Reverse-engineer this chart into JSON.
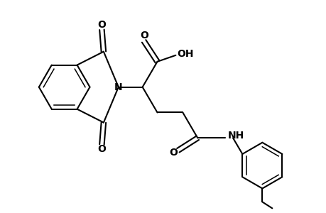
{
  "background_color": "#ffffff",
  "line_color": "#000000",
  "line_width": 1.5,
  "text_color": "#000000",
  "figsize": [
    4.6,
    3.0
  ],
  "dpi": 100,
  "xlim": [
    0,
    9.2
  ],
  "ylim": [
    0,
    6.0
  ]
}
